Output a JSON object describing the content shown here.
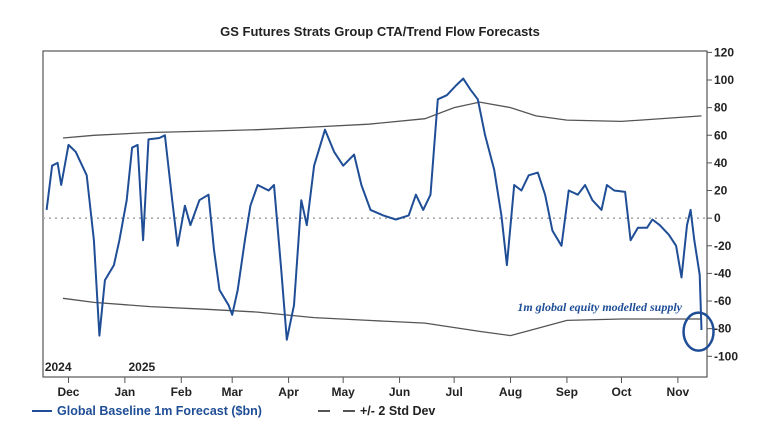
{
  "chart_data": {
    "type": "line",
    "title": "GS Futures Strats Group CTA/Trend Flow Forecasts",
    "ylim": [
      -115,
      121
    ],
    "xlim": [
      "2024-11-17",
      "2025-11-17"
    ],
    "y_ticks": [
      120,
      100,
      80,
      60,
      40,
      20,
      0,
      -20,
      -40,
      -60,
      -80,
      -100
    ],
    "y_axis_side": "right",
    "x_ticks": [
      {
        "date": "2024-12-01",
        "label": "Dec"
      },
      {
        "date": "2025-01-01",
        "label": "Jan"
      },
      {
        "date": "2025-02-01",
        "label": "Feb"
      },
      {
        "date": "2025-03-01",
        "label": "Mar"
      },
      {
        "date": "2025-04-01",
        "label": "Apr"
      },
      {
        "date": "2025-05-01",
        "label": "May"
      },
      {
        "date": "2025-06-01",
        "label": "Jun"
      },
      {
        "date": "2025-07-01",
        "label": "Jul"
      },
      {
        "date": "2025-08-01",
        "label": "Aug"
      },
      {
        "date": "2025-09-01",
        "label": "Sep"
      },
      {
        "date": "2025-10-01",
        "label": "Oct"
      },
      {
        "date": "2025-11-01",
        "label": "Nov"
      }
    ],
    "year_labels": [
      {
        "date": "2024-11-18",
        "label": "2024"
      },
      {
        "date": "2025-01-03",
        "label": "2025"
      }
    ],
    "zero_line": "dotted",
    "grid": false,
    "legend_placement": "bottom-left",
    "series": [
      {
        "name": "Global Baseline 1m Forecast ($bn)",
        "color": "#1f4e96",
        "points": [
          [
            "2024-11-19",
            6
          ],
          [
            "2024-11-22",
            38
          ],
          [
            "2024-11-25",
            40
          ],
          [
            "2024-11-27",
            24
          ],
          [
            "2024-12-01",
            53
          ],
          [
            "2024-12-05",
            48
          ],
          [
            "2024-12-11",
            31
          ],
          [
            "2024-12-15",
            -16
          ],
          [
            "2024-12-18",
            -85
          ],
          [
            "2024-12-21",
            -45
          ],
          [
            "2024-12-26",
            -34
          ],
          [
            "2024-12-29",
            -16
          ],
          [
            "2025-01-02",
            13
          ],
          [
            "2025-01-05",
            51
          ],
          [
            "2025-01-08",
            53
          ],
          [
            "2025-01-11",
            -16
          ],
          [
            "2025-01-14",
            57
          ],
          [
            "2025-01-20",
            58
          ],
          [
            "2025-01-23",
            60
          ],
          [
            "2025-01-27",
            13
          ],
          [
            "2025-01-30",
            -20
          ],
          [
            "2025-02-03",
            9
          ],
          [
            "2025-02-06",
            -5
          ],
          [
            "2025-02-11",
            13
          ],
          [
            "2025-02-16",
            17
          ],
          [
            "2025-02-19",
            -23
          ],
          [
            "2025-02-22",
            -52
          ],
          [
            "2025-02-27",
            -63
          ],
          [
            "2025-03-01",
            -70
          ],
          [
            "2025-03-04",
            -52
          ],
          [
            "2025-03-08",
            -16
          ],
          [
            "2025-03-11",
            9
          ],
          [
            "2025-03-15",
            24
          ],
          [
            "2025-03-21",
            20
          ],
          [
            "2025-03-24",
            24
          ],
          [
            "2025-03-28",
            -38
          ],
          [
            "2025-03-31",
            -88
          ],
          [
            "2025-04-04",
            -63
          ],
          [
            "2025-04-08",
            13
          ],
          [
            "2025-04-11",
            -5
          ],
          [
            "2025-04-15",
            38
          ],
          [
            "2025-04-21",
            64
          ],
          [
            "2025-04-26",
            48
          ],
          [
            "2025-05-01",
            38
          ],
          [
            "2025-05-07",
            46
          ],
          [
            "2025-05-11",
            24
          ],
          [
            "2025-05-16",
            6
          ],
          [
            "2025-05-23",
            2
          ],
          [
            "2025-05-30",
            -1
          ],
          [
            "2025-06-06",
            2
          ],
          [
            "2025-06-10",
            17
          ],
          [
            "2025-06-14",
            6
          ],
          [
            "2025-06-18",
            17
          ],
          [
            "2025-06-22",
            86
          ],
          [
            "2025-06-27",
            89
          ],
          [
            "2025-07-02",
            96
          ],
          [
            "2025-07-06",
            101
          ],
          [
            "2025-07-10",
            93
          ],
          [
            "2025-07-14",
            86
          ],
          [
            "2025-07-18",
            60
          ],
          [
            "2025-07-23",
            35
          ],
          [
            "2025-07-27",
            2
          ],
          [
            "2025-07-30",
            -34
          ],
          [
            "2025-08-03",
            24
          ],
          [
            "2025-08-07",
            20
          ],
          [
            "2025-08-11",
            31
          ],
          [
            "2025-08-16",
            33
          ],
          [
            "2025-08-20",
            17
          ],
          [
            "2025-08-24",
            -9
          ],
          [
            "2025-08-29",
            -20
          ],
          [
            "2025-09-02",
            20
          ],
          [
            "2025-09-07",
            17
          ],
          [
            "2025-09-11",
            24
          ],
          [
            "2025-09-15",
            13
          ],
          [
            "2025-09-20",
            6
          ],
          [
            "2025-09-23",
            24
          ],
          [
            "2025-09-27",
            20
          ],
          [
            "2025-10-03",
            19
          ],
          [
            "2025-10-06",
            -16
          ],
          [
            "2025-10-10",
            -7
          ],
          [
            "2025-10-15",
            -7
          ],
          [
            "2025-10-18",
            -1
          ],
          [
            "2025-10-22",
            -5
          ],
          [
            "2025-10-27",
            -12
          ],
          [
            "2025-10-31",
            -20
          ],
          [
            "2025-11-03",
            -43
          ],
          [
            "2025-11-06",
            -5
          ],
          [
            "2025-11-08",
            6
          ],
          [
            "2025-11-10",
            -16
          ],
          [
            "2025-11-13",
            -41
          ],
          [
            "2025-11-14",
            -81
          ]
        ]
      },
      {
        "name": "+/- 2 Std Dev",
        "color": "#555555",
        "upper": [
          [
            "2024-11-28",
            58
          ],
          [
            "2024-12-15",
            60
          ],
          [
            "2025-01-15",
            62
          ],
          [
            "2025-02-15",
            63
          ],
          [
            "2025-03-15",
            64
          ],
          [
            "2025-04-15",
            66
          ],
          [
            "2025-05-15",
            68
          ],
          [
            "2025-06-15",
            72
          ],
          [
            "2025-07-01",
            80
          ],
          [
            "2025-07-15",
            84
          ],
          [
            "2025-08-01",
            80
          ],
          [
            "2025-08-15",
            74
          ],
          [
            "2025-09-01",
            71
          ],
          [
            "2025-10-01",
            70
          ],
          [
            "2025-11-14",
            74
          ]
        ],
        "lower": [
          [
            "2024-11-28",
            -58
          ],
          [
            "2024-12-15",
            -61
          ],
          [
            "2025-01-15",
            -64
          ],
          [
            "2025-02-15",
            -66
          ],
          [
            "2025-03-15",
            -68
          ],
          [
            "2025-04-15",
            -72
          ],
          [
            "2025-05-15",
            -74
          ],
          [
            "2025-06-15",
            -76
          ],
          [
            "2025-07-15",
            -82
          ],
          [
            "2025-08-01",
            -85
          ],
          [
            "2025-08-15",
            -80
          ],
          [
            "2025-09-01",
            -74
          ],
          [
            "2025-10-01",
            -73
          ],
          [
            "2025-11-14",
            -73
          ]
        ]
      }
    ],
    "annotation": {
      "text": "1m global equity modelled supply",
      "date": "2025-11-14",
      "value": -80,
      "color": "#1f4e96"
    }
  }
}
